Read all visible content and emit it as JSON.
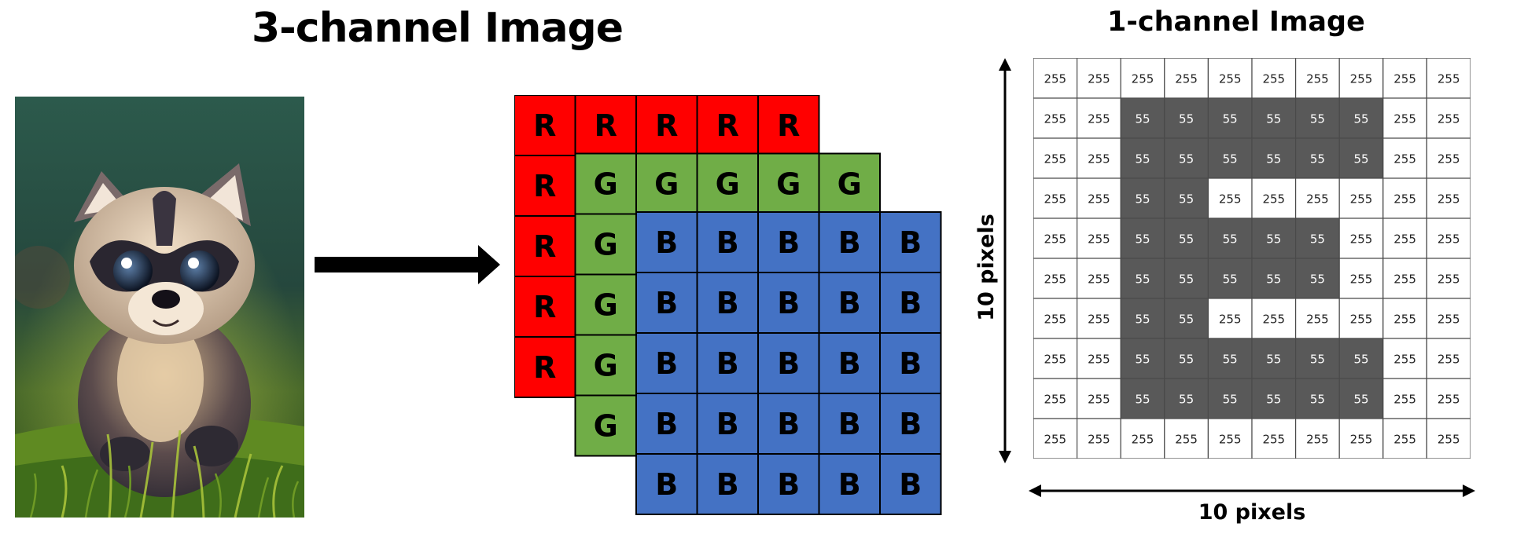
{
  "left": {
    "title": "3-channel Image",
    "picture": "cartoon raccoon cub sitting in grass",
    "channel_letters": {
      "r": "R",
      "g": "G",
      "b": "B"
    },
    "colors": {
      "r": "#ff0000",
      "g": "#70ad47",
      "b": "#4472c4"
    }
  },
  "right": {
    "title": "1-channel Image",
    "height_label": "10 pixels",
    "width_label": "10 pixels",
    "grid": [
      [
        255,
        255,
        255,
        255,
        255,
        255,
        255,
        255,
        255,
        255
      ],
      [
        255,
        255,
        55,
        55,
        55,
        55,
        55,
        55,
        255,
        255
      ],
      [
        255,
        255,
        55,
        55,
        55,
        55,
        55,
        55,
        255,
        255
      ],
      [
        255,
        255,
        55,
        55,
        255,
        255,
        255,
        255,
        255,
        255
      ],
      [
        255,
        255,
        55,
        55,
        55,
        55,
        55,
        255,
        255,
        255
      ],
      [
        255,
        255,
        55,
        55,
        55,
        55,
        55,
        255,
        255,
        255
      ],
      [
        255,
        255,
        55,
        55,
        255,
        255,
        255,
        255,
        255,
        255
      ],
      [
        255,
        255,
        55,
        55,
        55,
        55,
        55,
        55,
        255,
        255
      ],
      [
        255,
        255,
        55,
        55,
        55,
        55,
        55,
        55,
        255,
        255
      ],
      [
        255,
        255,
        255,
        255,
        255,
        255,
        255,
        255,
        255,
        255
      ]
    ],
    "dark_color": "#595959",
    "light_color": "#ffffff"
  }
}
